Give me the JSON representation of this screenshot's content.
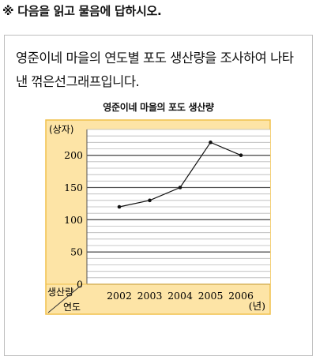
{
  "instruction": "※ 다음을 읽고 물음에 답하시오.",
  "problem_text": "영준이네 마을의 연도별 포도 생산량을 조사하여 나타낸 꺾은선그래프입니다.",
  "colors": {
    "panel": "#fde4a6",
    "panel_border": "#f0c04a",
    "line": "#111111",
    "grid_major": "#555555",
    "grid_minor": "#b8b8b8"
  },
  "chart_data": {
    "type": "line",
    "title": "영준이네 마을의 포도 생산량",
    "categories": [
      "2002",
      "2003",
      "2004",
      "2005",
      "2006"
    ],
    "series": [
      {
        "values": [
          120,
          130,
          150,
          220,
          200
        ]
      }
    ],
    "ylabel": "(상자)",
    "xlabel": "(년)",
    "corner_top": "생산량",
    "corner_bottom": "연도",
    "yticks": [
      0,
      50,
      100,
      150,
      200
    ],
    "ylim": [
      0,
      240
    ],
    "minor_step": 10,
    "grid": true
  }
}
